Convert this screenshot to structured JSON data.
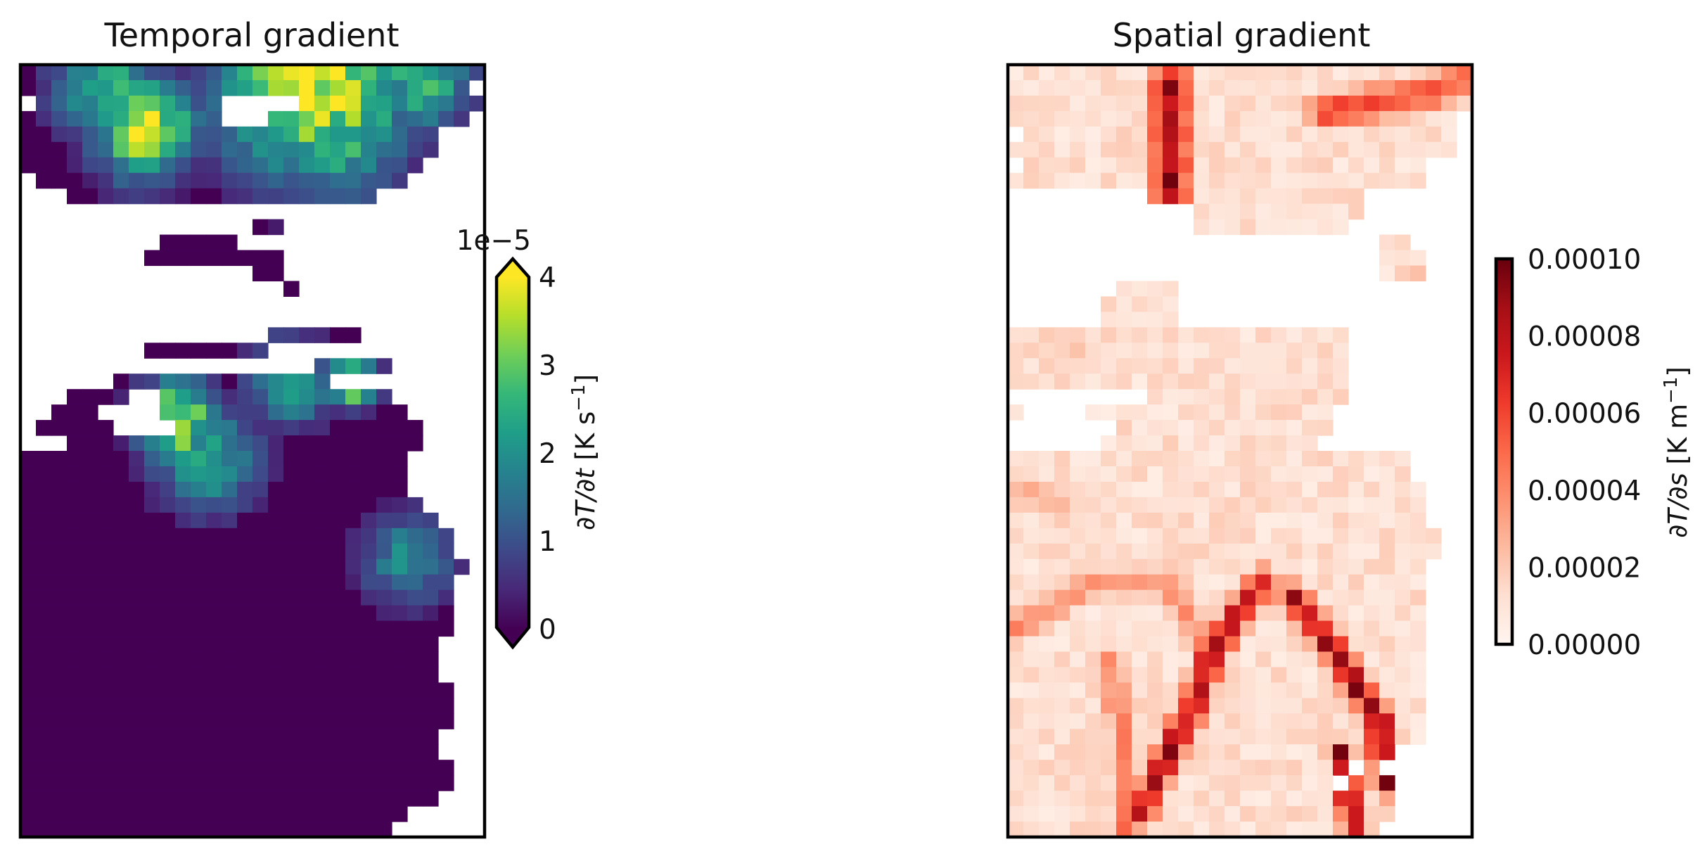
{
  "chart_data": [
    {
      "type": "heatmap",
      "title": "Temporal gradient",
      "colormap": "viridis",
      "missing_color": "#ffffff",
      "grid": false,
      "grid_size": {
        "cols": 30,
        "rows": 50
      },
      "colorbar": {
        "label": "∂T/∂t [K s⁻¹]",
        "label_parts": {
          "sym": "∂T/∂t",
          "unit": " [K s",
          "exp": "−1",
          "close": "]"
        },
        "offset_text": "1e−5",
        "scale": 1e-05,
        "range": [
          0,
          4
        ],
        "extend": "both",
        "ticks": [
          "0",
          "1",
          "2",
          "3",
          "4"
        ],
        "placement": "right"
      },
      "description_regions": {
        "row_extents": [
          [
            0,
            29
          ],
          [
            0,
            28
          ],
          [
            1,
            29
          ],
          [
            0,
            28
          ],
          [
            0,
            26
          ],
          [
            0,
            26
          ],
          [
            0,
            25
          ],
          [
            1,
            24
          ],
          [
            3,
            22
          ],
          [
            2,
            16
          ],
          [
            15,
            16
          ],
          [
            9,
            13
          ],
          [
            8,
            16
          ],
          [
            15,
            16
          ],
          [
            17,
            17
          ],
          [
            17,
            20
          ],
          [
            17,
            20
          ],
          [
            16,
            21
          ],
          [
            8,
            15
          ],
          [
            19,
            23
          ],
          [
            4,
            19
          ],
          [
            3,
            23
          ],
          [
            2,
            24
          ],
          [
            1,
            25
          ],
          [
            0,
            25
          ],
          [
            0,
            24
          ],
          [
            0,
            24
          ],
          [
            0,
            24
          ],
          [
            0,
            25
          ],
          [
            0,
            26
          ],
          [
            0,
            27
          ],
          [
            0,
            27
          ],
          [
            0,
            28
          ],
          [
            0,
            27
          ],
          [
            0,
            27
          ],
          [
            0,
            27
          ],
          [
            0,
            27
          ],
          [
            0,
            26
          ],
          [
            0,
            26
          ],
          [
            0,
            26
          ],
          [
            0,
            27
          ],
          [
            0,
            27
          ],
          [
            0,
            27
          ],
          [
            0,
            26
          ],
          [
            0,
            26
          ],
          [
            0,
            27
          ],
          [
            0,
            27
          ],
          [
            0,
            26
          ],
          [
            0,
            24
          ],
          [
            0,
            23
          ]
        ],
        "gaps": [
          [
            2,
            13,
            17
          ],
          [
            3,
            13,
            15
          ],
          [
            9,
            0,
            29
          ],
          [
            11,
            17,
            29
          ],
          [
            13,
            0,
            14
          ],
          [
            14,
            0,
            16
          ],
          [
            15,
            0,
            20
          ],
          [
            16,
            0,
            22
          ],
          [
            17,
            0,
            9
          ],
          [
            20,
            2,
            5
          ],
          [
            21,
            7,
            8
          ],
          [
            22,
            5,
            8
          ],
          [
            23,
            6,
            9
          ],
          [
            24,
            0,
            2
          ]
        ],
        "hotspots": [
          {
            "r": 0.5,
            "c": 18.5,
            "v": 3.9,
            "s": 4.5
          },
          {
            "r": 0.5,
            "c": 25.5,
            "v": 2.8,
            "s": 2.2
          },
          {
            "r": 1.0,
            "c": 5.0,
            "v": 2.5,
            "s": 2.5
          },
          {
            "r": 3.5,
            "c": 7.5,
            "v": 3.6,
            "s": 2.4
          },
          {
            "r": 4.5,
            "c": 20.5,
            "v": 2.4,
            "s": 2.6
          },
          {
            "r": 20.0,
            "c": 17.0,
            "v": 2.3,
            "s": 2.0
          },
          {
            "r": 20.0,
            "c": 21.0,
            "v": 3.5,
            "s": 1.2
          },
          {
            "r": 22.5,
            "c": 9.5,
            "v": 3.9,
            "s": 1.8
          },
          {
            "r": 25.0,
            "c": 11.5,
            "v": 2.4,
            "s": 2.4
          },
          {
            "r": 31.5,
            "c": 24.5,
            "v": 1.8,
            "s": 2.2
          }
        ],
        "background_value": 0.0
      }
    },
    {
      "type": "heatmap",
      "title": "Spatial gradient",
      "colormap": "Reds",
      "missing_color": "#ffffff",
      "grid": false,
      "grid_size": {
        "cols": 30,
        "rows": 50
      },
      "colorbar": {
        "label": "∂T/∂s [K m⁻¹]",
        "label_parts": {
          "sym": "∂T/∂s",
          "unit": " [K m",
          "exp": "−1",
          "close": "]"
        },
        "range": [
          0,
          0.0001
        ],
        "extend": "neither",
        "ticks": [
          "0.00000",
          "0.00002",
          "0.00004",
          "0.00006",
          "0.00008",
          "0.00010"
        ],
        "placement": "right"
      },
      "description_regions": {
        "row_extents": [
          [
            0,
            29
          ],
          [
            0,
            29
          ],
          [
            0,
            29
          ],
          [
            0,
            28
          ],
          [
            0,
            28
          ],
          [
            0,
            28
          ],
          [
            0,
            26
          ],
          [
            0,
            26
          ],
          [
            9,
            22
          ],
          [
            12,
            22
          ],
          [
            12,
            21
          ],
          [
            24,
            25
          ],
          [
            24,
            26
          ],
          [
            24,
            26
          ],
          [
            7,
            10
          ],
          [
            6,
            10
          ],
          [
            6,
            17
          ],
          [
            0,
            21
          ],
          [
            0,
            21
          ],
          [
            0,
            21
          ],
          [
            0,
            21
          ],
          [
            0,
            21
          ],
          [
            0,
            25
          ],
          [
            0,
            25
          ],
          [
            0,
            25
          ],
          [
            0,
            25
          ],
          [
            0,
            25
          ],
          [
            0,
            26
          ],
          [
            0,
            26
          ],
          [
            0,
            26
          ],
          [
            0,
            27
          ],
          [
            0,
            27
          ],
          [
            0,
            26
          ],
          [
            0,
            26
          ],
          [
            0,
            26
          ],
          [
            0,
            26
          ],
          [
            0,
            26
          ],
          [
            0,
            26
          ],
          [
            0,
            26
          ],
          [
            0,
            26
          ],
          [
            0,
            26
          ],
          [
            0,
            26
          ],
          [
            0,
            26
          ],
          [
            0,
            26
          ],
          [
            0,
            24
          ],
          [
            0,
            23
          ],
          [
            0,
            24
          ],
          [
            0,
            24
          ],
          [
            0,
            24
          ],
          [
            0,
            23
          ]
        ],
        "gaps": [
          [
            4,
            0,
            0
          ],
          [
            6,
            0,
            0
          ],
          [
            21,
            0,
            8
          ],
          [
            22,
            1,
            4
          ],
          [
            23,
            0,
            6
          ],
          [
            24,
            0,
            5
          ],
          [
            21,
            22,
            25
          ],
          [
            22,
            21,
            25
          ],
          [
            23,
            21,
            25
          ],
          [
            24,
            20,
            25
          ],
          [
            15,
            12,
            18
          ],
          [
            16,
            11,
            17
          ],
          [
            45,
            22,
            22
          ],
          [
            46,
            21,
            21
          ]
        ],
        "ridges": [
          {
            "pts": [
              [
                0.5,
                10
              ],
              [
                3.5,
                10
              ],
              [
                8,
                10
              ]
            ],
            "v": 9e-05,
            "w": 0.9
          },
          {
            "pts": [
              [
                2.5,
                20
              ],
              [
                1.5,
                26
              ],
              [
                0.5,
                29
              ]
            ],
            "v": 6e-05,
            "w": 0.9
          },
          {
            "pts": [
              [
                33,
                16
              ],
              [
                37,
                13
              ],
              [
                42,
                11
              ],
              [
                48,
                8
              ]
            ],
            "v": 8.5e-05,
            "w": 0.7
          },
          {
            "pts": [
              [
                34,
                18
              ],
              [
                38,
                21
              ],
              [
                42,
                23.5
              ],
              [
                46,
                24
              ]
            ],
            "v": 9e-05,
            "w": 0.7
          },
          {
            "pts": [
              [
                36,
                0
              ],
              [
                33,
                5
              ],
              [
                33,
                10
              ],
              [
                37,
                12
              ]
            ],
            "v": 4e-05,
            "w": 0.8
          },
          {
            "pts": [
              [
                38,
                6
              ],
              [
                43,
                7
              ],
              [
                49,
                7
              ]
            ],
            "v": 4.5e-05,
            "w": 0.7
          },
          {
            "pts": [
              [
                44,
                21
              ],
              [
                47,
                21.5
              ],
              [
                49,
                22
              ]
            ],
            "v": 9e-05,
            "w": 0.6
          },
          {
            "pts": [
              [
                16,
                2
              ],
              [
                18,
                4
              ]
            ],
            "v": 2e-05,
            "w": 1.6
          },
          {
            "pts": [
              [
                27,
                0
              ],
              [
                28,
                3
              ]
            ],
            "v": 3e-05,
            "w": 1.0
          },
          {
            "pts": [
              [
                14,
                26
              ],
              [
                15,
                28
              ]
            ],
            "v": 5e-05,
            "w": 0.8
          }
        ],
        "background_value": 1.2e-05
      }
    }
  ]
}
